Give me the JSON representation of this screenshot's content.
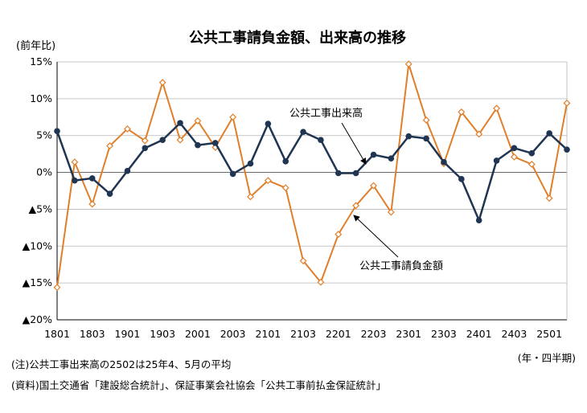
{
  "chart_data": {
    "type": "line",
    "title": "公共工事請負金額、出来高の推移",
    "ylabel": "(前年比)",
    "xlabel": "(年・四半期)",
    "ylim": [
      -20,
      15
    ],
    "y_ticks": [
      15,
      10,
      5,
      0,
      -5,
      -10,
      -15,
      -20
    ],
    "y_tick_labels": [
      "15%",
      "10%",
      "5%",
      "0%",
      "▲5%",
      "▲10%",
      "▲15%",
      "▲20%"
    ],
    "x": [
      "1801",
      "1802",
      "1803",
      "1804",
      "1901",
      "1902",
      "1903",
      "1904",
      "2001",
      "2002",
      "2003",
      "2004",
      "2101",
      "2102",
      "2103",
      "2104",
      "2201",
      "2202",
      "2203",
      "2204",
      "2301",
      "2302",
      "2303",
      "2304",
      "2401",
      "2402",
      "2403",
      "2404",
      "2501",
      "2502"
    ],
    "x_tick_labels": [
      "1801",
      "1803",
      "1901",
      "1903",
      "2001",
      "2003",
      "2101",
      "2103",
      "2201",
      "2203",
      "2301",
      "2303",
      "2401",
      "2403",
      "2501"
    ],
    "grid": true,
    "series": [
      {
        "name": "公共工事出来高",
        "color": "#1f3552",
        "marker": "circle",
        "values": [
          5.6,
          -1.1,
          -0.8,
          -2.9,
          0.2,
          3.3,
          4.4,
          6.7,
          3.7,
          4.0,
          -0.2,
          1.2,
          6.6,
          1.5,
          5.5,
          4.4,
          -0.1,
          -0.1,
          2.4,
          1.9,
          4.9,
          4.6,
          1.4,
          -0.9,
          -6.5,
          1.6,
          3.3,
          2.6,
          5.3,
          3.1
        ]
      },
      {
        "name": "公共工事請負金額",
        "color": "#e07f2a",
        "marker": "diamond",
        "values": [
          -15.6,
          1.4,
          -4.3,
          3.6,
          5.9,
          4.3,
          12.2,
          4.4,
          7.0,
          3.4,
          7.5,
          -3.3,
          -1.1,
          -2.1,
          -12.0,
          -14.9,
          -8.4,
          -4.5,
          -1.8,
          -5.4,
          14.7,
          7.1,
          1.2,
          8.2,
          5.2,
          8.7,
          2.1,
          1.1,
          -3.5,
          9.4
        ]
      }
    ],
    "annotations": [
      {
        "text": "公共工事出来高",
        "series": 0
      },
      {
        "text": "公共工事請負金額",
        "series": 1
      }
    ]
  },
  "notes": {
    "note1": "(注)公共工事出来高の2502は25年4、5月の平均",
    "source": "(資料)国土交通省「建設総合統計」、保証事業会社協会「公共工事前払金保証統計」"
  }
}
